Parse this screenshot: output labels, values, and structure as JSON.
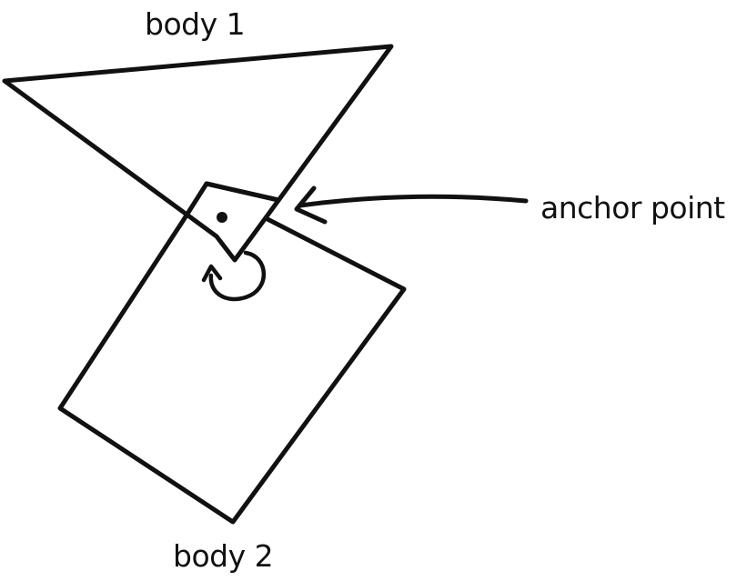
{
  "labels": {
    "body1": "body 1",
    "body2": "body 2",
    "anchor": "anchor point"
  },
  "colors": {
    "ink": "#111111",
    "background": "#ffffff"
  }
}
